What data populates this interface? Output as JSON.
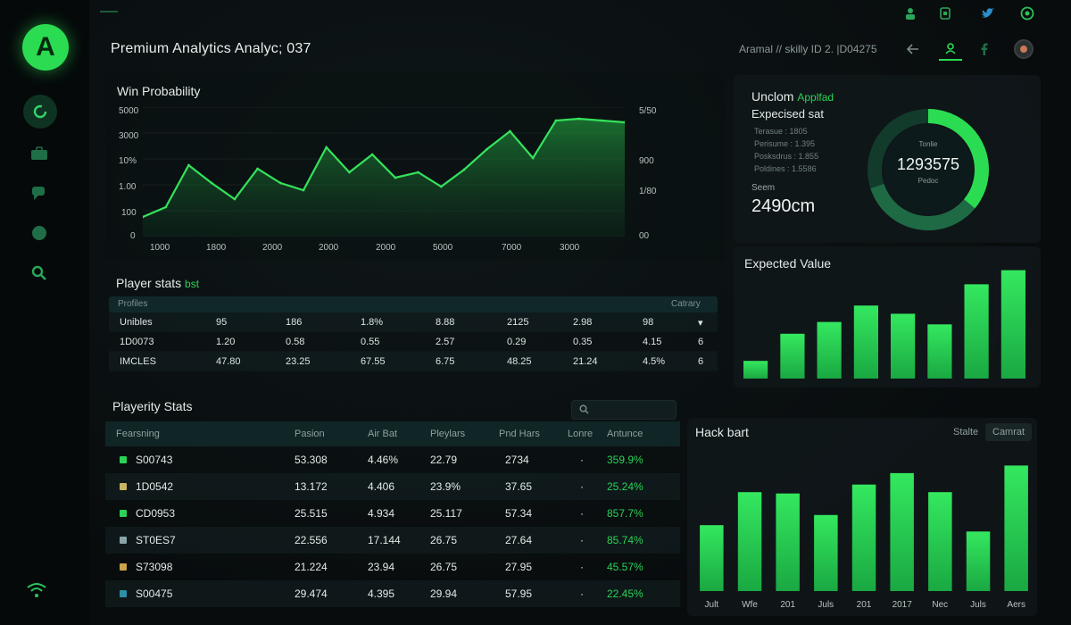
{
  "header": {
    "title": "Premium Analytics Analyc; 037",
    "meta": "Aramal // skilly ID 2. |D04275",
    "back_icon": "arrow-left-icon",
    "colors": {
      "accent": "#2bdc52",
      "bg": "#070b0c",
      "panel": "#10181a"
    }
  },
  "sidebar": {
    "logo_letter": "A",
    "items": [
      "refresh-icon",
      "briefcase-icon",
      "chat-icon",
      "circle-icon",
      "search-icon"
    ],
    "footer_icon": "wifi-icon"
  },
  "top_icons": [
    "user-icon",
    "document-icon",
    "twitter-icon",
    "globe-icon"
  ],
  "win_probability": {
    "title": "Win Probability",
    "y_left": [
      "5000",
      "3000",
      "10%",
      "1.00",
      "100",
      "0"
    ],
    "y_right": [
      "5/50",
      "900",
      "1/80",
      "00"
    ],
    "x_ticks": [
      "1000",
      "1800",
      "2000",
      "2000",
      "2000",
      "5000",
      "7000",
      "3000"
    ]
  },
  "chart_data": {
    "type": "area",
    "title": "Win Probability",
    "x": [
      0,
      1,
      2,
      3,
      4,
      5,
      6,
      7,
      8,
      9,
      10,
      11,
      12,
      13,
      14,
      15,
      16,
      17,
      18,
      19,
      20,
      21
    ],
    "values": [
      22,
      33,
      80,
      60,
      42,
      76,
      60,
      52,
      100,
      72,
      92,
      66,
      72,
      56,
      75,
      98,
      118,
      88,
      130,
      132,
      130,
      128
    ]
  },
  "player_stats": {
    "title": "Player stats",
    "tag": "bst",
    "header": [
      "Profiles",
      "Catrary"
    ],
    "rows": [
      [
        "Unibles",
        "95",
        "186",
        "1.8%",
        "8.88",
        "2125",
        "2.98",
        "98",
        "▾"
      ],
      [
        "1D0073",
        "1.20",
        "0.58",
        "0.55",
        "2.57",
        "0.29",
        "0.35",
        "4.15",
        "6"
      ],
      [
        "IMCLES",
        "47.80",
        "23.25",
        "67.55",
        "6.75",
        "48.25",
        "21.24",
        "4.5%",
        "6"
      ]
    ]
  },
  "playerity_stats": {
    "title": "Playerity Stats",
    "search_placeholder": "",
    "columns": [
      "Fearsning",
      "Pasion",
      "Air Bat",
      "Pleylars",
      "Pnd Hars",
      "Lonre",
      "Antunce"
    ],
    "rows": [
      {
        "color": "#2bd257",
        "id": "S00743",
        "a": "53.308",
        "b": "4.46%",
        "c": "22.79",
        "d": "2734",
        "e": "·",
        "f": "359.9%"
      },
      {
        "color": "#c9b465",
        "id": "1D0542",
        "a": "13.172",
        "b": "4.406",
        "c": "23.9%",
        "d": "37.65",
        "e": "·",
        "f": "25.24%"
      },
      {
        "color": "#2bd257",
        "id": "CD0953",
        "a": "25.515",
        "b": "4.934",
        "c": "25.117",
        "d": "57.34",
        "e": "·",
        "f": "857.7%"
      },
      {
        "color": "#8aa4a8",
        "id": "ST0ES7",
        "a": "22.556",
        "b": "17.144",
        "c": "26.75",
        "d": "27.64",
        "e": "·",
        "f": "85.74%"
      },
      {
        "color": "#c9a44d",
        "id": "S73098",
        "a": "21.224",
        "b": "23.94",
        "c": "26.75",
        "d": "27.95",
        "e": "·",
        "f": "45.57%"
      },
      {
        "color": "#2e8fa8",
        "id": "S00475",
        "a": "29.474",
        "b": "4.395",
        "c": "29.94",
        "d": "57.95",
        "e": "·",
        "f": "22.45%"
      }
    ]
  },
  "donut": {
    "title": "Unclom",
    "title_tag": "Applfad",
    "subtitle": "Expecised sat",
    "legend": [
      {
        "label": "Terasue",
        "value": "1805"
      },
      {
        "label": "Perisume",
        "value": "1.395"
      },
      {
        "label": "Posksdrus",
        "value": "1.855"
      },
      {
        "label": "Poldines",
        "value": "1.5586"
      }
    ],
    "center_top": "Tonlie",
    "center_value": "1293575",
    "center_bottom": "Pedoc",
    "stat_label": "Seem",
    "stat_value": "2490cm",
    "fraction": 0.36
  },
  "expected_value": {
    "title": "Expected Value",
    "values": [
      15,
      38,
      48,
      62,
      55,
      46,
      80,
      92
    ]
  },
  "hack_bart": {
    "title": "Hack bart",
    "toggle": [
      "Stalte",
      "Camrat"
    ],
    "categories": [
      "Jult",
      "Wfe",
      "201",
      "Juls",
      "201",
      "2017",
      "Nec",
      "Juls",
      "Aers"
    ],
    "values": [
      52,
      78,
      77,
      60,
      84,
      93,
      78,
      47,
      99
    ]
  }
}
